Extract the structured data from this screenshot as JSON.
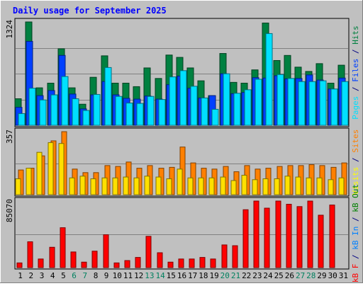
{
  "chart_data": {
    "title": "Daily usage for September 2025",
    "type": "bar",
    "days": [
      "1",
      "2",
      "3",
      "4",
      "5",
      "6",
      "7",
      "8",
      "9",
      "10",
      "11",
      "12",
      "13",
      "14",
      "15",
      "16",
      "17",
      "18",
      "19",
      "20",
      "21",
      "22",
      "23",
      "24",
      "25",
      "26",
      "27",
      "28",
      "29",
      "30",
      "31"
    ],
    "weekend_days": [
      "6",
      "7",
      "13",
      "14",
      "20",
      "21",
      "27",
      "28"
    ],
    "panels": [
      {
        "name": "pages-files-hits",
        "type": "bar",
        "max_label": "1324",
        "ymax": 1324,
        "right_label_parts": [
          {
            "text": "Pages",
            "color": "#00e0ff"
          },
          {
            "text": " / ",
            "color": "#000080"
          },
          {
            "text": "Files",
            "color": "#0040ff"
          },
          {
            "text": " / ",
            "color": "#000080"
          },
          {
            "text": "Hits",
            "color": "#008040"
          }
        ],
        "series": [
          {
            "name": "Hits",
            "color": "#008040",
            "values": [
              340,
              1324,
              480,
              540,
              980,
              480,
              270,
              615,
              890,
              540,
              540,
              495,
              735,
              600,
              900,
              870,
              735,
              570,
              380,
              920,
              550,
              540,
              710,
              1310,
              830,
              895,
              745,
              690,
              790,
              540,
              770
            ]
          },
          {
            "name": "Files",
            "color": "#0040ff",
            "values": [
              230,
              1075,
              380,
              445,
              895,
              400,
              210,
              390,
              560,
              390,
              345,
              335,
              375,
              335,
              520,
              630,
              475,
              350,
              380,
              660,
              405,
              420,
              610,
              605,
              635,
              595,
              600,
              645,
              580,
              465,
              605
            ]
          },
          {
            "name": "Pages",
            "color": "#00e0ff",
            "values": [
              150,
              475,
              325,
              390,
              625,
              340,
              190,
              395,
              740,
              370,
              285,
              280,
              370,
              330,
              620,
              700,
              500,
              350,
              205,
              660,
              410,
              455,
              590,
              1175,
              650,
              600,
              560,
              560,
              570,
              465,
              560
            ]
          }
        ]
      },
      {
        "name": "visits-sites",
        "type": "bar",
        "max_label": "357",
        "ymax": 357,
        "right_label_parts": [
          {
            "text": "Visits",
            "color": "#ffff00"
          },
          {
            "text": " / ",
            "color": "#000080"
          },
          {
            "text": "Sites",
            "color": "#ff8000"
          }
        ],
        "series": [
          {
            "name": "Sites",
            "color": "#ff8000",
            "values": [
              140,
              150,
              220,
              305,
              357,
              145,
              125,
              125,
              165,
              160,
              185,
              150,
              165,
              150,
              155,
              270,
              180,
              150,
              145,
              160,
              130,
              165,
              145,
              150,
              160,
              165,
              165,
              170,
              165,
              155,
              180
            ]
          },
          {
            "name": "Visits",
            "color": "#ffe000",
            "values": [
              90,
              150,
              240,
              295,
              290,
              95,
              105,
              90,
              95,
              95,
              100,
              95,
              105,
              100,
              90,
              145,
              95,
              95,
              95,
              100,
              80,
              110,
              85,
              90,
              90,
              105,
              100,
              95,
              95,
              85,
              95
            ]
          }
        ]
      },
      {
        "name": "kbf-kbin-kbout",
        "type": "bar",
        "max_label": "85070",
        "ymax": 85070,
        "right_label_parts": [
          {
            "text": "kB F",
            "color": "#ff0000"
          },
          {
            "text": " / ",
            "color": "#000080"
          },
          {
            "text": "kB In",
            "color": "#0080ff"
          },
          {
            "text": " / ",
            "color": "#000080"
          },
          {
            "text": "kB Out",
            "color": "#008000"
          }
        ],
        "series": [
          {
            "name": "kB F",
            "color": "#ff0000",
            "values": [
              6000,
              33000,
              11000,
              26000,
              51000,
              20000,
              7000,
              21000,
              42000,
              6000,
              9000,
              13000,
              40000,
              19000,
              7000,
              11000,
              11000,
              13000,
              11000,
              29000,
              28000,
              74000,
              85070,
              76000,
              85070,
              81000,
              78000,
              85070,
              67000,
              80000,
              0
            ]
          }
        ]
      }
    ]
  }
}
